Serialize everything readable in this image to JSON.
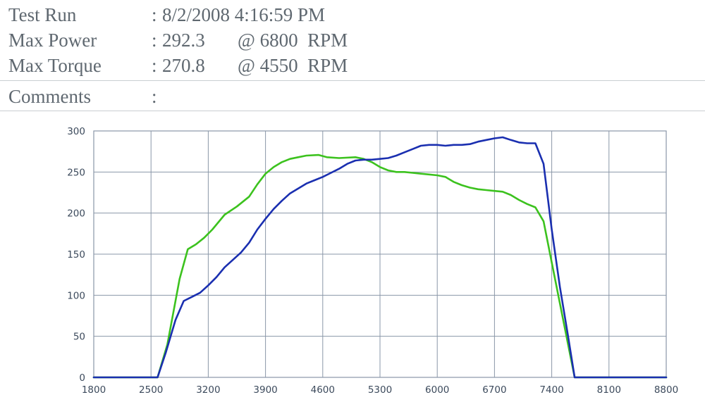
{
  "header": {
    "test_run": {
      "label": "Test Run",
      "colon": ":",
      "value": "8/2/2008 4:16:59 PM"
    },
    "max_power": {
      "label": "Max Power",
      "colon": ":",
      "value": "292.3",
      "at": "@ 6800  RPM"
    },
    "max_torque": {
      "label": "Max Torque",
      "colon": ":",
      "value": "270.8",
      "at": "@ 4550  RPM"
    },
    "comments": {
      "label": "Comments",
      "colon": ":",
      "value": ""
    }
  },
  "colors": {
    "power": "#1a2fb0",
    "torque": "#3cc21e",
    "grid": "#8a97a8",
    "frame": "#8a97a8"
  },
  "chart_data": {
    "type": "line",
    "title": "",
    "xlabel": "",
    "ylabel": "",
    "xlim": [
      1800,
      8800
    ],
    "ylim": [
      0,
      300
    ],
    "x_ticks": [
      1800,
      2500,
      3200,
      3900,
      4600,
      5300,
      6000,
      6700,
      7400,
      8100,
      8800
    ],
    "y_ticks": [
      0,
      50,
      100,
      150,
      200,
      250,
      300
    ],
    "grid": true,
    "legend": "none",
    "series": [
      {
        "key": "power",
        "color": "#1a2fb0",
        "x": [
          1800,
          2580,
          2680,
          2800,
          2900,
          3000,
          3100,
          3200,
          3300,
          3400,
          3500,
          3600,
          3700,
          3800,
          3900,
          4000,
          4100,
          4200,
          4300,
          4400,
          4500,
          4600,
          4700,
          4800,
          4900,
          5000,
          5100,
          5200,
          5300,
          5400,
          5500,
          5600,
          5700,
          5800,
          5900,
          6000,
          6100,
          6200,
          6300,
          6400,
          6500,
          6600,
          6700,
          6800,
          6900,
          7000,
          7100,
          7200,
          7300,
          7400,
          7500,
          7600,
          7680,
          7750,
          8800
        ],
        "y": [
          0,
          0,
          30,
          70,
          93,
          98,
          103,
          112,
          122,
          134,
          143,
          152,
          164,
          180,
          193,
          205,
          215,
          224,
          230,
          236,
          240,
          244,
          249,
          254,
          260,
          264,
          265,
          265,
          266,
          267,
          270,
          274,
          278,
          282,
          283,
          283,
          282,
          283,
          283,
          284,
          287,
          289,
          291,
          292.3,
          289,
          286,
          285,
          285,
          260,
          180,
          110,
          50,
          0,
          0,
          0
        ]
      },
      {
        "key": "torque",
        "color": "#3cc21e",
        "x": [
          1800,
          2580,
          2700,
          2850,
          2950,
          3050,
          3150,
          3250,
          3400,
          3550,
          3700,
          3800,
          3900,
          4000,
          4100,
          4200,
          4300,
          4400,
          4550,
          4650,
          4800,
          5000,
          5100,
          5200,
          5300,
          5400,
          5500,
          5600,
          5700,
          5800,
          5900,
          6000,
          6100,
          6200,
          6300,
          6400,
          6500,
          6600,
          6700,
          6800,
          6900,
          7000,
          7100,
          7200,
          7300,
          7400,
          7500,
          7600,
          7680,
          7750,
          8800
        ],
        "y": [
          0,
          0,
          40,
          120,
          156,
          162,
          170,
          180,
          198,
          208,
          220,
          235,
          248,
          256,
          262,
          266,
          268,
          270,
          270.8,
          268,
          267,
          268,
          266,
          262,
          256,
          252,
          250,
          250,
          249,
          248,
          247,
          246,
          244,
          238,
          234,
          231,
          229,
          228,
          227,
          226,
          222,
          216,
          211,
          207,
          190,
          140,
          90,
          40,
          0,
          0,
          0
        ]
      }
    ]
  }
}
